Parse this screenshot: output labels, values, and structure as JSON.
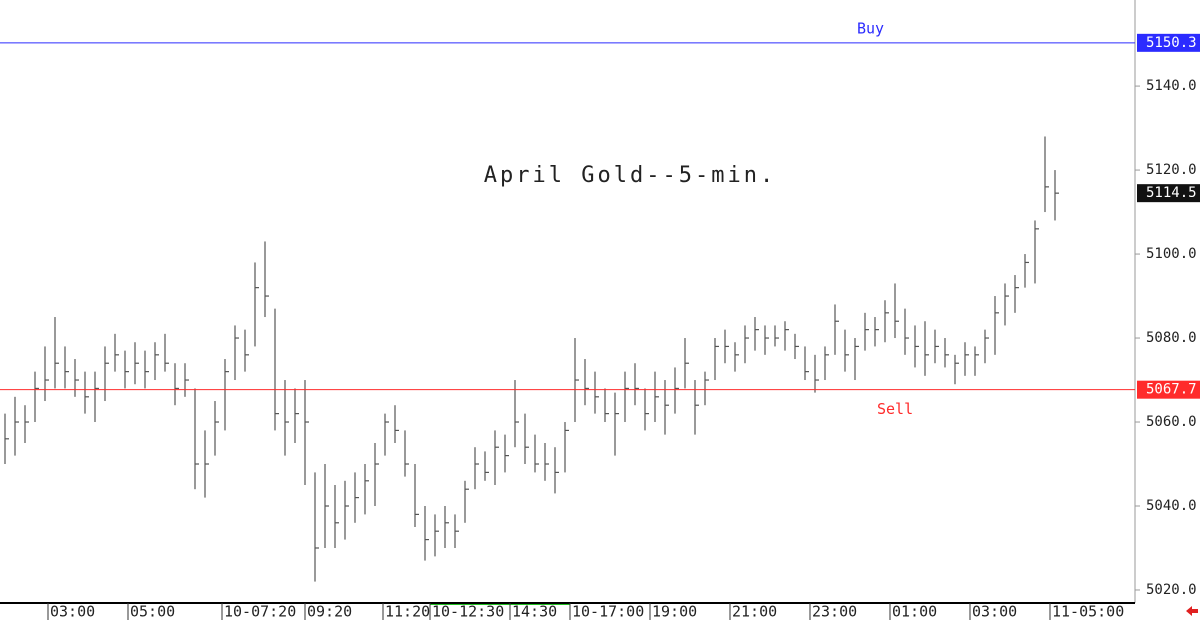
{
  "chart_data": {
    "type": "ohlc",
    "title": "April Gold--5-min.",
    "high": [
      5062,
      5066,
      5064,
      5072,
      5078,
      5085,
      5078,
      5075,
      5072,
      5072,
      5078,
      5081,
      5077,
      5079,
      5077,
      5079,
      5081,
      5074,
      5074,
      5068,
      5058,
      5065,
      5075,
      5083,
      5082,
      5098,
      5103,
      5087,
      5070,
      5068,
      5070,
      5048,
      5050,
      5045,
      5046,
      5048,
      5050,
      5055,
      5062,
      5064,
      5058,
      5050,
      5040,
      5038,
      5040,
      5038,
      5046,
      5054,
      5053,
      5058,
      5057,
      5070,
      5062,
      5057,
      5055,
      5054,
      5060,
      5080,
      5075,
      5072,
      5068,
      5067,
      5072,
      5074,
      5068,
      5072,
      5070,
      5073,
      5080,
      5070,
      5072,
      5080,
      5082,
      5079,
      5083,
      5085,
      5083,
      5083,
      5084,
      5081,
      5078,
      5076,
      5078,
      5088,
      5082,
      5080,
      5086,
      5085,
      5089,
      5093,
      5087,
      5083,
      5084,
      5082,
      5080,
      5076,
      5079,
      5078,
      5082,
      5090,
      5093,
      5095,
      5100,
      5108,
      5128,
      5120
    ],
    "low": [
      5050,
      5052,
      5055,
      5060,
      5065,
      5068,
      5068,
      5066,
      5062,
      5060,
      5065,
      5072,
      5068,
      5069,
      5068,
      5070,
      5072,
      5064,
      5066,
      5044,
      5042,
      5052,
      5058,
      5070,
      5072,
      5078,
      5085,
      5058,
      5052,
      5055,
      5045,
      5022,
      5030,
      5030,
      5032,
      5036,
      5038,
      5040,
      5052,
      5055,
      5047,
      5035,
      5027,
      5028,
      5030,
      5030,
      5036,
      5044,
      5046,
      5045,
      5048,
      5054,
      5050,
      5048,
      5046,
      5043,
      5048,
      5060,
      5064,
      5062,
      5060,
      5052,
      5060,
      5064,
      5058,
      5060,
      5057,
      5062,
      5068,
      5057,
      5064,
      5070,
      5074,
      5072,
      5074,
      5077,
      5076,
      5078,
      5077,
      5075,
      5070,
      5067,
      5070,
      5076,
      5072,
      5070,
      5077,
      5078,
      5079,
      5080,
      5076,
      5073,
      5071,
      5074,
      5073,
      5069,
      5071,
      5071,
      5074,
      5076,
      5083,
      5086,
      5092,
      5093,
      5110,
      5108
    ],
    "close": [
      5056,
      5060,
      5060,
      5068,
      5070,
      5074,
      5072,
      5070,
      5066,
      5068,
      5074,
      5076,
      5072,
      5074,
      5072,
      5076,
      5074,
      5068,
      5070,
      5050,
      5050,
      5060,
      5072,
      5080,
      5076,
      5092,
      5090,
      5062,
      5060,
      5062,
      5060,
      5030,
      5040,
      5036,
      5040,
      5042,
      5046,
      5050,
      5060,
      5058,
      5050,
      5038,
      5032,
      5034,
      5036,
      5034,
      5044,
      5050,
      5048,
      5054,
      5052,
      5060,
      5054,
      5050,
      5050,
      5048,
      5058,
      5070,
      5068,
      5066,
      5062,
      5062,
      5068,
      5068,
      5062,
      5066,
      5064,
      5068,
      5074,
      5064,
      5070,
      5078,
      5078,
      5076,
      5080,
      5082,
      5080,
      5080,
      5082,
      5078,
      5072,
      5070,
      5076,
      5084,
      5076,
      5078,
      5082,
      5082,
      5086,
      5084,
      5080,
      5078,
      5076,
      5078,
      5076,
      5074,
      5076,
      5076,
      5080,
      5086,
      5090,
      5092,
      5098,
      5106,
      5116,
      5114.5
    ],
    "color": "#555555",
    "ylim": [
      5016.9,
      5160.5
    ],
    "yticks": [
      {
        "value": 5020,
        "label": "5020.0"
      },
      {
        "value": 5040,
        "label": "5040.0"
      },
      {
        "value": 5060,
        "label": "5060.0"
      },
      {
        "value": 5080,
        "label": "5080.0"
      },
      {
        "value": 5100,
        "label": "5100.0"
      },
      {
        "value": 5120,
        "label": "5120.0"
      },
      {
        "value": 5140,
        "label": "5140.0"
      }
    ],
    "xticks": [
      {
        "value": 4.3,
        "label": "03:00"
      },
      {
        "value": 12.3,
        "label": "05:00"
      },
      {
        "value": 21.7,
        "label": "10-07:20"
      },
      {
        "value": 30,
        "label": "09:20"
      },
      {
        "value": 37.8,
        "label": "11:20"
      },
      {
        "value": 42.5,
        "label": "10-12:30"
      },
      {
        "value": 50.5,
        "label": "14:30"
      },
      {
        "value": 56.5,
        "label": "10-17:00"
      },
      {
        "value": 64.5,
        "label": "19:00"
      },
      {
        "value": 72.5,
        "label": "21:00"
      },
      {
        "value": 80.5,
        "label": "23:00"
      },
      {
        "value": 88.5,
        "label": "01:00"
      },
      {
        "value": 96.5,
        "label": "03:00"
      },
      {
        "value": 104.5,
        "label": "11-05:00"
      }
    ],
    "levels": [
      {
        "name": "Buy",
        "value": 5150.3,
        "color": "#2b2bff"
      },
      {
        "name": "Sell",
        "value": 5067.7,
        "color": "#ff2b2b"
      }
    ],
    "last_price": 5114.5
  }
}
